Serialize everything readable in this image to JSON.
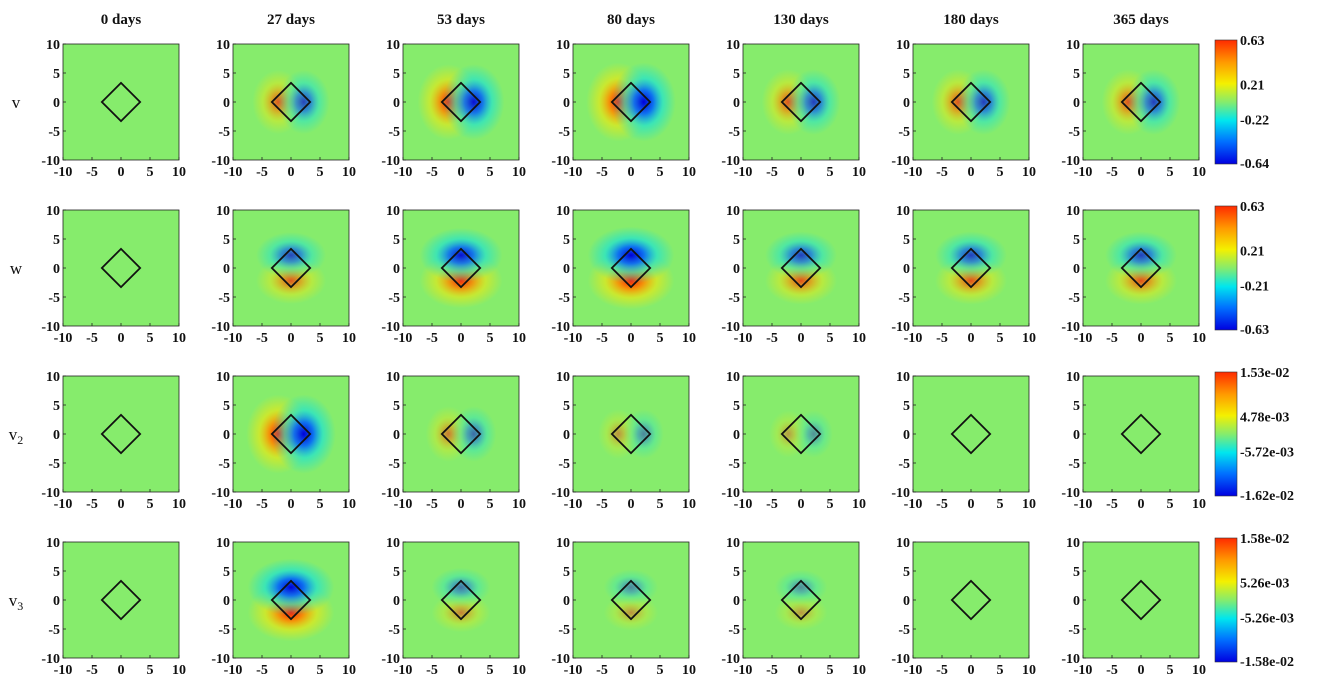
{
  "chart_data": {
    "type": "heatmap",
    "columns": [
      "0 days",
      "27 days",
      "53 days",
      "80 days",
      "130 days",
      "180 days",
      "365 days"
    ],
    "xlim": [
      -10,
      10
    ],
    "ylim": [
      -10,
      10
    ],
    "xticks": [
      "-10",
      "-5",
      "0",
      "5",
      "10"
    ],
    "yticks": [
      "10",
      "5",
      "0",
      "-5",
      "-10"
    ],
    "rows": [
      {
        "label": "v",
        "sub": "",
        "pattern": "horizontal-dipole",
        "colorbar_ticks": [
          "0.63",
          "0.21",
          "-0.22",
          "-0.64"
        ],
        "peak_intensity": [
          0.0,
          0.55,
          0.9,
          1.0,
          0.6,
          0.6,
          0.6
        ]
      },
      {
        "label": "w",
        "sub": "",
        "pattern": "vertical-dipole",
        "colorbar_ticks": [
          "0.63",
          "0.21",
          "-0.21",
          "-0.63"
        ],
        "peak_intensity": [
          0.0,
          0.55,
          0.9,
          1.0,
          0.6,
          0.6,
          0.6
        ]
      },
      {
        "label": "v",
        "sub": "2",
        "pattern": "horizontal-dipole",
        "colorbar_ticks": [
          "1.53e-02",
          "4.78e-03",
          "-5.72e-03",
          "-1.62e-02"
        ],
        "peak_intensity": [
          0.0,
          1.0,
          0.3,
          0.12,
          0.05,
          0.0,
          0.0
        ]
      },
      {
        "label": "v",
        "sub": "3",
        "pattern": "vertical-dipole",
        "colorbar_ticks": [
          "1.58e-02",
          "5.26e-03",
          "-5.26e-03",
          "-1.58e-02"
        ],
        "peak_intensity": [
          0.0,
          1.0,
          0.25,
          0.12,
          0.08,
          0.0,
          0.0
        ]
      }
    ],
    "colormap": "jet",
    "overlay": "diamond outline, vertices at (0,±3.3) and (±3.3,0)"
  }
}
